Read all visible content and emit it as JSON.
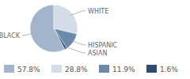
{
  "chart_data": {
    "type": "pie",
    "categories": [
      "BLACK",
      "WHITE",
      "HISPANIC",
      "ASIAN"
    ],
    "values": [
      57.8,
      28.8,
      11.9,
      1.6
    ],
    "value_labels": [
      "57.8%",
      "28.8%",
      "11.9%",
      "1.6%"
    ],
    "colors": [
      "#a3b5cb",
      "#d3dce7",
      "#6d89a9",
      "#2d4c70"
    ],
    "legend": "bottom"
  }
}
